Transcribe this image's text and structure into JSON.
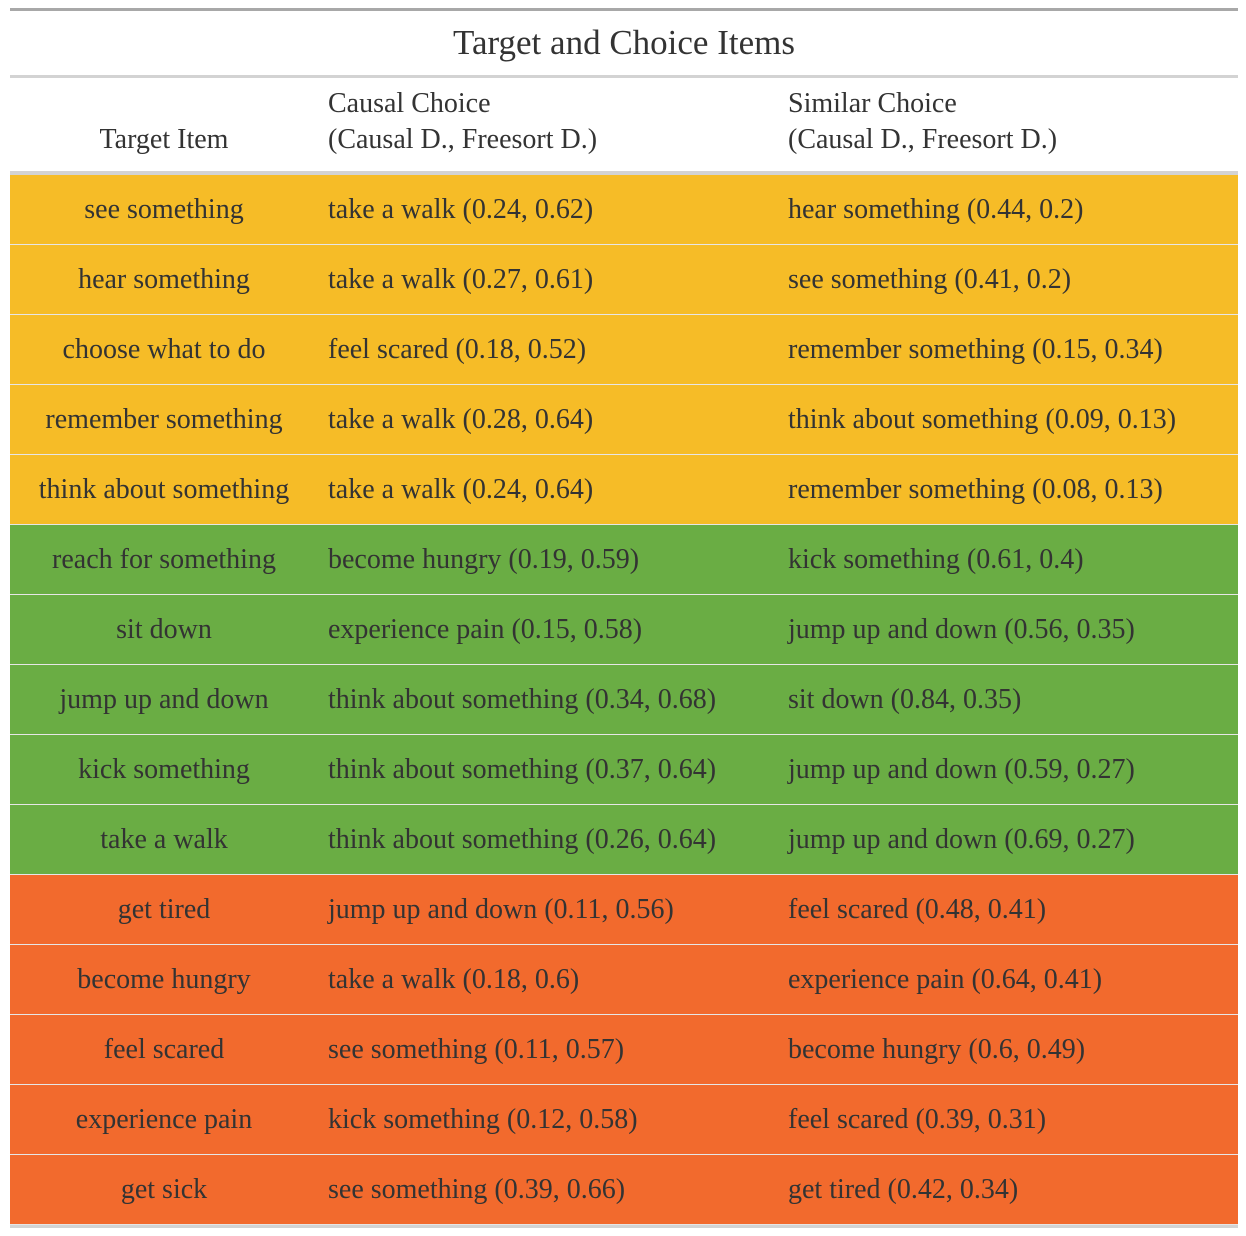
{
  "table": {
    "title": "Target and Choice Items",
    "headers": {
      "target": "Target Item",
      "causal_line1": "Causal Choice",
      "causal_line2": "(Causal D., Freesort D.)",
      "similar_line1": "Similar Choice",
      "similar_line2": "(Causal D., Freesort D.)"
    },
    "colors": {
      "group1": "#f6bc27",
      "group2": "#6aad44",
      "group3": "#f26a2d"
    },
    "rows": [
      {
        "group": 1,
        "target": "see something",
        "causal": "take a walk (0.24, 0.62)",
        "similar": "hear something (0.44, 0.2)"
      },
      {
        "group": 1,
        "target": "hear something",
        "causal": "take a walk (0.27, 0.61)",
        "similar": "see something (0.41, 0.2)"
      },
      {
        "group": 1,
        "target": "choose what to do",
        "causal": "feel scared (0.18, 0.52)",
        "similar": "remember something (0.15, 0.34)"
      },
      {
        "group": 1,
        "target": "remember something",
        "causal": "take a walk (0.28, 0.64)",
        "similar": "think about something (0.09, 0.13)"
      },
      {
        "group": 1,
        "target": "think about something",
        "causal": "take a walk (0.24, 0.64)",
        "similar": "remember something (0.08, 0.13)"
      },
      {
        "group": 2,
        "target": "reach for something",
        "causal": "become hungry (0.19, 0.59)",
        "similar": "kick something (0.61, 0.4)"
      },
      {
        "group": 2,
        "target": "sit down",
        "causal": "experience pain (0.15, 0.58)",
        "similar": "jump up and down (0.56, 0.35)"
      },
      {
        "group": 2,
        "target": "jump up and down",
        "causal": "think about something (0.34, 0.68)",
        "similar": "sit down (0.84, 0.35)"
      },
      {
        "group": 2,
        "target": "kick something",
        "causal": "think about something (0.37, 0.64)",
        "similar": "jump up and down (0.59, 0.27)"
      },
      {
        "group": 2,
        "target": "take a walk",
        "causal": "think about something (0.26, 0.64)",
        "similar": "jump up and down (0.69, 0.27)"
      },
      {
        "group": 3,
        "target": "get tired",
        "causal": "jump up and down (0.11, 0.56)",
        "similar": "feel scared (0.48, 0.41)"
      },
      {
        "group": 3,
        "target": "become hungry",
        "causal": "take a walk (0.18, 0.6)",
        "similar": "experience pain (0.64, 0.41)"
      },
      {
        "group": 3,
        "target": "feel scared",
        "causal": "see something (0.11, 0.57)",
        "similar": "become hungry (0.6, 0.49)"
      },
      {
        "group": 3,
        "target": "experience pain",
        "causal": "kick something (0.12, 0.58)",
        "similar": "feel scared (0.39, 0.31)"
      },
      {
        "group": 3,
        "target": "get sick",
        "causal": "see something (0.39, 0.66)",
        "similar": "get tired (0.42, 0.34)"
      }
    ]
  }
}
